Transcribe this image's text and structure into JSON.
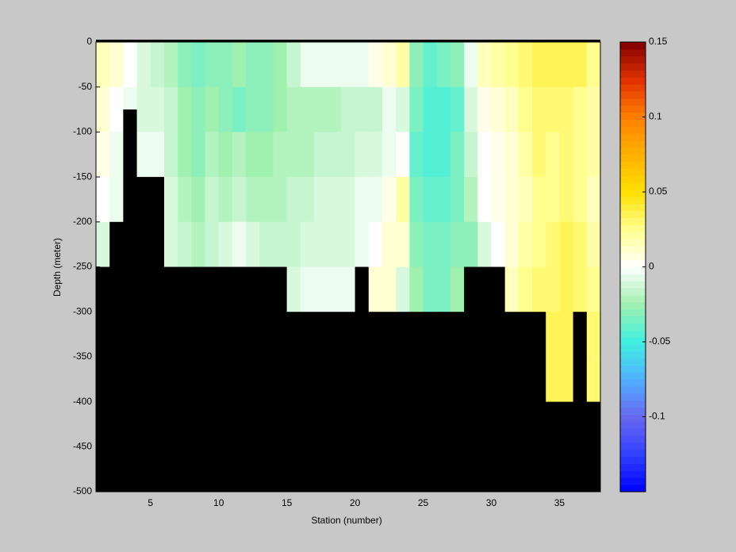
{
  "chart_data": {
    "type": "heatmap",
    "xlabel": "Station (number)",
    "ylabel": "Depth (meter)",
    "x": [
      1,
      2,
      3,
      4,
      5,
      6,
      7,
      8,
      9,
      10,
      11,
      12,
      13,
      14,
      15,
      16,
      17,
      18,
      19,
      20,
      21,
      22,
      23,
      24,
      25,
      26,
      27,
      28,
      29,
      30,
      31,
      32,
      33,
      34,
      35,
      36,
      37,
      38
    ],
    "y": [
      0,
      -50,
      -100,
      -150,
      -200,
      -250,
      -300,
      -350,
      -400,
      -450,
      -500
    ],
    "xlim": [
      1,
      38
    ],
    "ylim": [
      -500,
      0
    ],
    "xticks": [
      5,
      10,
      15,
      20,
      25,
      30,
      35
    ],
    "yticks": [
      0,
      -50,
      -100,
      -150,
      -200,
      -250,
      -300,
      -350,
      -400,
      -450,
      -500
    ],
    "bottom": [
      -250,
      -200,
      -75,
      -150,
      -150,
      -250,
      -250,
      -250,
      -250,
      -250,
      -250,
      -250,
      -250,
      -250,
      -300,
      -300,
      -300,
      -300,
      -300,
      -250,
      -300,
      -300,
      -300,
      -300,
      -300,
      -300,
      -300,
      -250,
      -250,
      -250,
      -300,
      -300,
      -300,
      -400,
      -400,
      -300,
      -400
    ],
    "bottom_color": "#000000",
    "values": [
      [
        0.015,
        0.01,
        0.005,
        0.0,
        -0.01,
        null,
        null,
        null,
        null,
        null
      ],
      [
        0.01,
        0.0,
        -0.005,
        -0.005,
        null,
        null,
        null,
        null,
        null,
        null
      ],
      [
        0.0,
        -0.005,
        null,
        null,
        null,
        null,
        null,
        null,
        null,
        null
      ],
      [
        -0.01,
        -0.01,
        -0.005,
        null,
        null,
        null,
        null,
        null,
        null,
        null
      ],
      [
        -0.015,
        -0.01,
        -0.005,
        null,
        null,
        null,
        null,
        null,
        null,
        null
      ],
      [
        -0.02,
        -0.015,
        -0.015,
        -0.01,
        -0.01,
        null,
        null,
        null,
        null,
        null
      ],
      [
        -0.03,
        -0.025,
        -0.025,
        -0.02,
        -0.015,
        null,
        null,
        null,
        null,
        null
      ],
      [
        -0.035,
        -0.03,
        -0.03,
        -0.025,
        -0.02,
        null,
        null,
        null,
        null,
        null
      ],
      [
        -0.03,
        -0.025,
        -0.02,
        -0.015,
        -0.015,
        null,
        null,
        null,
        null,
        null
      ],
      [
        -0.03,
        -0.03,
        -0.025,
        -0.02,
        -0.01,
        null,
        null,
        null,
        null,
        null
      ],
      [
        -0.025,
        -0.035,
        -0.02,
        -0.015,
        -0.005,
        null,
        null,
        null,
        null,
        null
      ],
      [
        -0.03,
        -0.03,
        -0.025,
        -0.02,
        -0.01,
        null,
        null,
        null,
        null,
        null
      ],
      [
        -0.03,
        -0.03,
        -0.025,
        -0.02,
        -0.015,
        null,
        null,
        null,
        null,
        null
      ],
      [
        -0.025,
        -0.025,
        -0.02,
        -0.02,
        -0.015,
        null,
        null,
        null,
        null,
        null
      ],
      [
        -0.015,
        -0.02,
        -0.02,
        -0.015,
        -0.015,
        -0.01,
        null,
        null,
        null,
        null
      ],
      [
        -0.005,
        -0.02,
        -0.02,
        -0.015,
        -0.01,
        -0.005,
        null,
        null,
        null,
        null
      ],
      [
        -0.005,
        -0.02,
        -0.015,
        -0.01,
        -0.01,
        -0.005,
        null,
        null,
        null,
        null
      ],
      [
        -0.005,
        -0.02,
        -0.015,
        -0.01,
        -0.01,
        -0.005,
        null,
        null,
        null,
        null
      ],
      [
        -0.005,
        -0.015,
        -0.015,
        -0.01,
        -0.01,
        -0.005,
        null,
        null,
        null,
        null
      ],
      [
        -0.005,
        -0.015,
        -0.01,
        -0.005,
        -0.005,
        null,
        null,
        null,
        null,
        null
      ],
      [
        0.005,
        -0.015,
        -0.01,
        -0.005,
        0.0,
        0.01,
        null,
        null,
        null,
        null
      ],
      [
        0.01,
        -0.005,
        -0.005,
        0.005,
        0.01,
        0.01,
        null,
        null,
        null,
        null
      ],
      [
        0.02,
        -0.01,
        0.0,
        0.02,
        0.01,
        -0.01,
        null,
        null,
        null,
        null
      ],
      [
        -0.03,
        -0.035,
        -0.04,
        -0.035,
        -0.03,
        -0.025,
        null,
        null,
        null,
        null
      ],
      [
        -0.04,
        -0.045,
        -0.045,
        -0.04,
        -0.035,
        -0.035,
        null,
        null,
        null,
        null
      ],
      [
        -0.035,
        -0.045,
        -0.045,
        -0.04,
        -0.035,
        -0.035,
        null,
        null,
        null,
        null
      ],
      [
        -0.03,
        -0.04,
        -0.035,
        -0.035,
        -0.03,
        -0.025,
        null,
        null,
        null,
        null
      ],
      [
        -0.005,
        -0.01,
        -0.015,
        -0.02,
        -0.03,
        null,
        null,
        null,
        null,
        null
      ],
      [
        0.015,
        0.005,
        0.0,
        0.0,
        -0.01,
        null,
        null,
        null,
        null,
        null
      ],
      [
        0.02,
        0.01,
        0.005,
        0.005,
        0.0,
        null,
        null,
        null,
        null,
        null
      ],
      [
        0.025,
        0.015,
        0.01,
        0.01,
        0.01,
        0.015,
        null,
        null,
        null,
        null
      ],
      [
        0.03,
        0.025,
        0.02,
        0.015,
        0.02,
        0.025,
        null,
        null,
        null,
        null
      ],
      [
        0.035,
        0.03,
        0.03,
        0.025,
        0.025,
        0.03,
        null,
        null,
        null,
        null
      ],
      [
        0.035,
        0.03,
        0.025,
        0.025,
        0.03,
        0.03,
        0.035,
        0.035,
        null,
        null
      ],
      [
        0.035,
        0.03,
        0.03,
        0.03,
        0.035,
        0.035,
        0.035,
        0.035,
        null,
        null
      ],
      [
        0.035,
        0.025,
        0.025,
        0.025,
        0.03,
        0.03,
        null,
        null,
        null,
        null
      ],
      [
        0.025,
        0.02,
        0.02,
        0.015,
        0.02,
        0.025,
        0.03,
        0.03,
        null,
        null
      ]
    ],
    "clim": [
      -0.15,
      0.15
    ],
    "colormap": [
      "#0000ff",
      "#3040ff",
      "#6868f0",
      "#50b0ff",
      "#40f0e0",
      "#a0f0b0",
      "#ffffff",
      "#ffff90",
      "#ffe000",
      "#ffb000",
      "#ff8000",
      "#e03000",
      "#800000"
    ],
    "cticks": [
      -0.1,
      -0.05,
      0,
      0.05,
      0.1,
      0.15
    ]
  }
}
